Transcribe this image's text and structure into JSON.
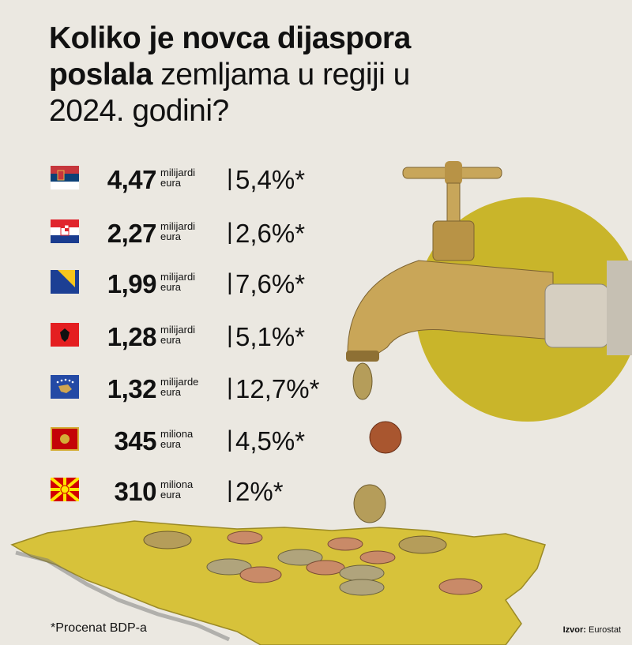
{
  "title": {
    "bold": "Koliko je novca dijaspora poslala",
    "regular": "zemljama u regiji u 2024. godini?"
  },
  "rows": [
    {
      "amount": "4,47",
      "unit": "milijardi",
      "unit2": "eura",
      "share": "5,4%*"
    },
    {
      "amount": "2,27",
      "unit": "milijardi",
      "unit2": "eura",
      "share": "2,6%*"
    },
    {
      "amount": "1,99",
      "unit": "milijardi",
      "unit2": "eura",
      "share": "7,6%*"
    },
    {
      "amount": "1,28",
      "unit": "milijardi",
      "unit2": "eura",
      "share": "5,1%*"
    },
    {
      "amount": "1,32",
      "unit": "milijarde",
      "unit2": "eura",
      "share": "12,7%*"
    },
    {
      "amount": "345",
      "unit": "miliona",
      "unit2": "eura",
      "share": "4,5%*"
    },
    {
      "amount": "310",
      "unit": "miliona",
      "unit2": "eura",
      "share": "2%*"
    }
  ],
  "footnote": "*Procenat BDP-a",
  "source": {
    "label": "Izvor:",
    "value": "Eurostat"
  }
}
